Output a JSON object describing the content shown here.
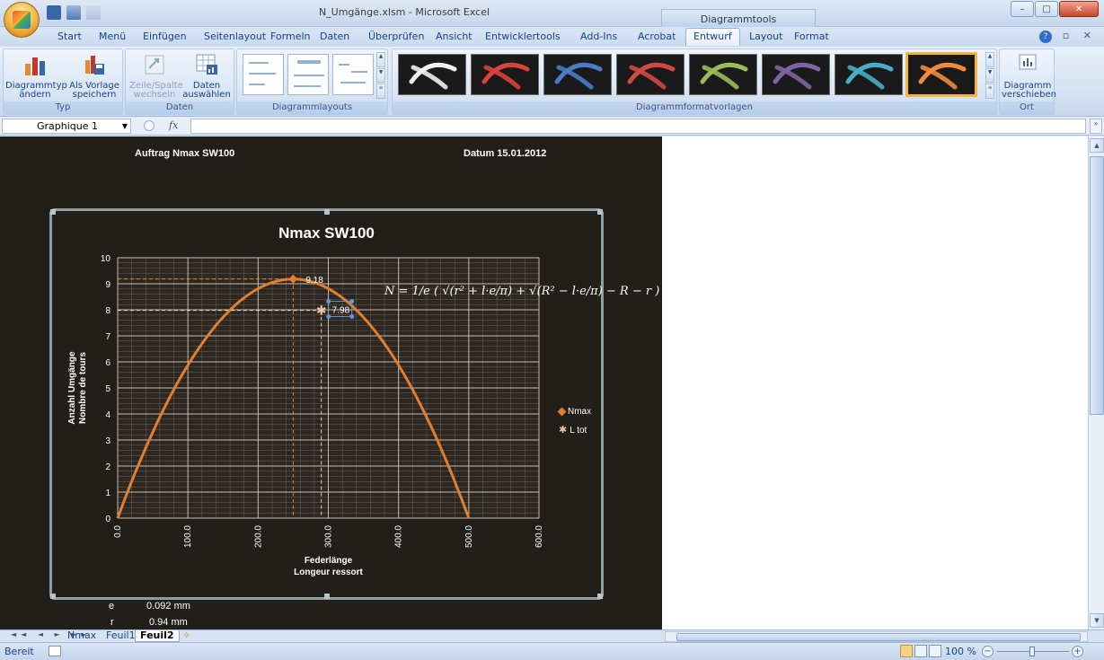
{
  "window": {
    "title": "N_Umgänge.xlsm - Microsoft Excel",
    "context_tab": "Diagrammtools",
    "controls": {
      "minimize": "–",
      "maximize": "□",
      "close": "✕"
    }
  },
  "ribbon_tabs": [
    "Start",
    "Menü",
    "Einfügen",
    "Seitenlayout",
    "Formeln",
    "Daten",
    "Überprüfen",
    "Ansicht",
    "Entwicklertools",
    "Add-Ins",
    "Acrobat",
    "Entwurf",
    "Layout",
    "Format"
  ],
  "active_tab": "Entwurf",
  "mdi_controls": "– ▫ ✕",
  "ribbon": {
    "typ": {
      "label": "Typ",
      "change_l1": "Diagrammtyp",
      "change_l2": "ändern",
      "save_l1": "Als Vorlage",
      "save_l2": "speichern"
    },
    "daten": {
      "label": "Daten",
      "switch_l1": "Zeile/Spalte",
      "switch_l2": "wechseln",
      "select_l1": "Daten",
      "select_l2": "auswählen"
    },
    "layouts": {
      "label": "Diagrammlayouts"
    },
    "styles": {
      "label": "Diagrammformatvorlagen",
      "colors": [
        "#f0f0f0",
        "#d8433a",
        "#4a7cc5",
        "#cf4a45",
        "#9bbb59",
        "#8064a2",
        "#4aacc6",
        "#f28b3b"
      ],
      "selected_index": 7
    },
    "ort": {
      "label": "Ort",
      "move_l1": "Diagramm",
      "move_l2": "verschieben"
    }
  },
  "formula_bar": {
    "name_box": "Graphique 1",
    "fx": "fx",
    "value": ""
  },
  "sheet": {
    "auftrag": "Auftrag Nmax SW100",
    "datum": "Datum 15.01.2012",
    "cells": [
      {
        "label": "e",
        "value": "0.092 mm"
      },
      {
        "label": "r",
        "value": "0.94 mm"
      }
    ]
  },
  "chart_data": {
    "type": "line",
    "title": "Nmax SW100",
    "ylabel": [
      "Anzahl Umgänge",
      "Nombre de tours"
    ],
    "xlabel": [
      "Federlänge",
      "Longeur ressort"
    ],
    "xlim": [
      0,
      600
    ],
    "ylim": [
      0,
      10
    ],
    "xticks": [
      "0.0",
      "100.0",
      "200.0",
      "300.0",
      "400.0",
      "500.0",
      "600.0"
    ],
    "yticks": [
      "0",
      "1",
      "2",
      "3",
      "4",
      "5",
      "6",
      "7",
      "8",
      "9",
      "10"
    ],
    "series": [
      {
        "name": "Nmax",
        "color": "#e27f2e",
        "shape": "parabola",
        "x_start": 0,
        "x_peak": 250,
        "y_peak": 9.18,
        "x_end": 500,
        "peak_label": "9.18"
      },
      {
        "name": "L tot",
        "color": "#e8c3a3",
        "points": [
          {
            "x": 290,
            "y": 7.98,
            "label": "7.98"
          }
        ]
      }
    ],
    "formula": "N = 1/e ( √(r² + l·e/π) + √(R² − l·e/π) − R − r )",
    "grid": true,
    "legend": "right"
  },
  "sheet_tabs": [
    "Nmax",
    "Feuil1",
    "Feuil2"
  ],
  "active_sheet": "Feuil2",
  "status": {
    "ready": "Bereit",
    "zoom": "100 %"
  }
}
